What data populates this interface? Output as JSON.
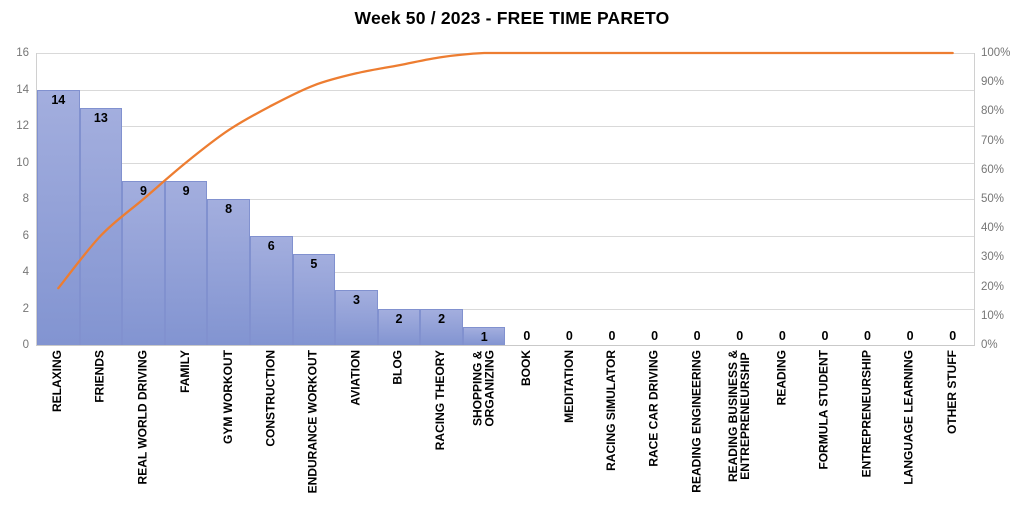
{
  "title": "Week 50 / 2023 - FREE TIME PARETO",
  "chart_data": {
    "type": "bar",
    "subtype": "pareto (bars + cumulative % line)",
    "title": "Week 50 / 2023 - FREE TIME PARETO",
    "categories": [
      "RELAXING",
      "FRIENDS",
      "REAL WORLD DRIVING",
      "FAMILY",
      "GYM WORKOUT",
      "CONSTRUCTION",
      "ENDURANCE WORKOUT",
      "AVIATION",
      "BLOG",
      "RACING THEORY",
      "SHOPPING &\nORGANIZING",
      "BOOK",
      "MEDITATION",
      "RACING SIMULATOR",
      "RACE CAR DRIVING",
      "READING ENGINEERING",
      "READING BUSINESS &\nENTREPRENEURSHIP",
      "READING",
      "FORMULA STUDENT",
      "ENTREPRENEURSHIP",
      "LANGUAGE LEARNING",
      "OTHER STUFF"
    ],
    "values": [
      14,
      13,
      9,
      9,
      8,
      6,
      5,
      3,
      2,
      2,
      1,
      0,
      0,
      0,
      0,
      0,
      0,
      0,
      0,
      0,
      0,
      0
    ],
    "cumulative_pct": [
      19.44,
      37.5,
      50.0,
      62.5,
      73.61,
      81.94,
      88.89,
      93.06,
      95.83,
      98.61,
      100,
      100,
      100,
      100,
      100,
      100,
      100,
      100,
      100,
      100,
      100,
      100
    ],
    "y_axis": {
      "min": 0,
      "max": 16,
      "step": 2,
      "tick_labels": [
        "0",
        "2",
        "4",
        "6",
        "8",
        "10",
        "12",
        "14",
        "16"
      ]
    },
    "pct_axis": {
      "min": 0,
      "max": 100,
      "step": 10,
      "tick_labels": [
        "0%",
        "10%",
        "20%",
        "30%",
        "40%",
        "50%",
        "60%",
        "70%",
        "80%",
        "90%",
        "100%"
      ]
    },
    "grid": "horizontal",
    "legend": "none",
    "colors": {
      "bar_fill_top": "#a3aede",
      "bar_fill_bottom": "#8294d1",
      "bar_border": "#8191cf",
      "cumulative_line": "#ed7d31",
      "gridline": "#d9d9d9",
      "axis_text": "#767676",
      "label_text": "#000000"
    }
  }
}
